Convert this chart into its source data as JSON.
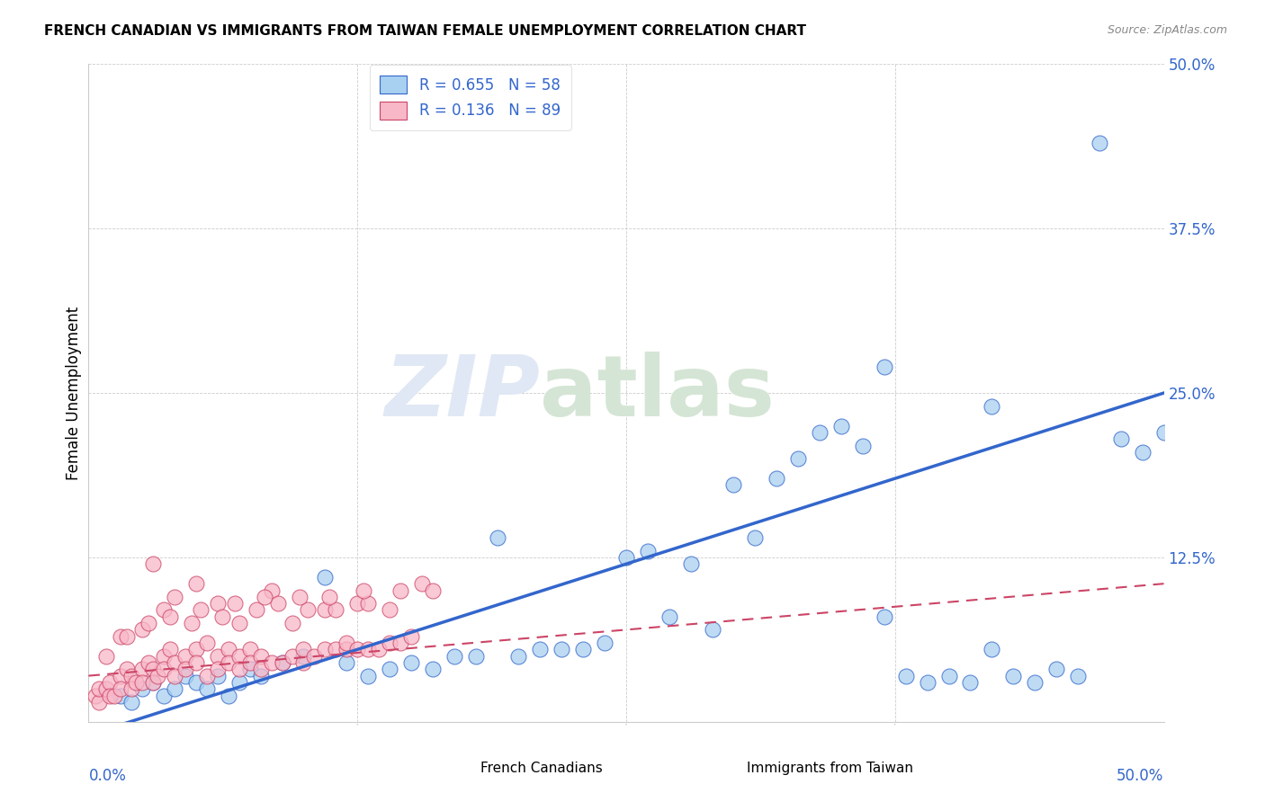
{
  "title": "FRENCH CANADIAN VS IMMIGRANTS FROM TAIWAN FEMALE UNEMPLOYMENT CORRELATION CHART",
  "source": "Source: ZipAtlas.com",
  "ylabel": "Female Unemployment",
  "xlim": [
    0.0,
    50.0
  ],
  "ylim": [
    0.0,
    50.0
  ],
  "legend_r1": "R = 0.655",
  "legend_n1": "N = 58",
  "legend_r2": "R = 0.136",
  "legend_n2": "N = 89",
  "color_blue": "#A8D0F0",
  "color_pink": "#F8B8C8",
  "line_blue": "#3366CC",
  "line_pink": "#CC4466",
  "text_color": "#3366CC",
  "watermark_zip": "ZIP",
  "watermark_atlas": "atlas",
  "blue_line_x0": 0.0,
  "blue_line_y0": -1.0,
  "blue_line_x1": 50.0,
  "blue_line_y1": 25.0,
  "pink_line_x0": 0.0,
  "pink_line_y0": 3.5,
  "pink_line_x1": 50.0,
  "pink_line_y1": 10.5,
  "blue_scatter_x": [
    1.5,
    2.0,
    2.5,
    3.0,
    3.5,
    4.0,
    4.5,
    5.0,
    5.5,
    6.0,
    6.5,
    7.0,
    7.5,
    8.0,
    9.0,
    10.0,
    11.0,
    12.0,
    13.0,
    14.0,
    15.0,
    16.0,
    17.0,
    18.0,
    19.0,
    20.0,
    21.0,
    22.0,
    23.0,
    24.0,
    25.0,
    26.0,
    27.0,
    28.0,
    29.0,
    30.0,
    31.0,
    32.0,
    33.0,
    34.0,
    35.0,
    36.0,
    37.0,
    38.0,
    39.0,
    40.0,
    41.0,
    42.0,
    43.0,
    44.0,
    45.0,
    46.0,
    47.0,
    48.0,
    49.0,
    50.0,
    37.0,
    42.0
  ],
  "blue_scatter_y": [
    2.0,
    1.5,
    2.5,
    3.0,
    2.0,
    2.5,
    3.5,
    3.0,
    2.5,
    3.5,
    2.0,
    3.0,
    4.0,
    3.5,
    4.5,
    5.0,
    11.0,
    4.5,
    3.5,
    4.0,
    4.5,
    4.0,
    5.0,
    5.0,
    14.0,
    5.0,
    5.5,
    5.5,
    5.5,
    6.0,
    12.5,
    13.0,
    8.0,
    12.0,
    7.0,
    18.0,
    14.0,
    18.5,
    20.0,
    22.0,
    22.5,
    21.0,
    8.0,
    3.5,
    3.0,
    3.5,
    3.0,
    5.5,
    3.5,
    3.0,
    4.0,
    3.5,
    44.0,
    21.5,
    20.5,
    22.0,
    27.0,
    24.0
  ],
  "pink_scatter_x": [
    0.3,
    0.5,
    0.5,
    0.8,
    1.0,
    1.0,
    1.2,
    1.5,
    1.5,
    1.8,
    2.0,
    2.0,
    2.2,
    2.5,
    2.5,
    2.8,
    3.0,
    3.0,
    3.2,
    3.5,
    3.5,
    3.8,
    4.0,
    4.0,
    4.5,
    4.5,
    5.0,
    5.0,
    5.5,
    5.5,
    6.0,
    6.0,
    6.5,
    6.5,
    7.0,
    7.0,
    7.5,
    7.5,
    8.0,
    8.0,
    8.5,
    9.0,
    9.5,
    10.0,
    10.0,
    10.5,
    11.0,
    11.5,
    12.0,
    12.0,
    12.5,
    13.0,
    13.5,
    14.0,
    14.5,
    15.0,
    3.0,
    4.0,
    5.0,
    6.0,
    7.0,
    8.5,
    9.5,
    11.0,
    12.5,
    14.0,
    1.5,
    2.5,
    3.5,
    4.8,
    6.2,
    7.8,
    8.8,
    10.2,
    11.5,
    13.0,
    0.8,
    1.8,
    2.8,
    3.8,
    5.2,
    6.8,
    8.2,
    9.8,
    11.2,
    12.8,
    14.5,
    15.5,
    16.0
  ],
  "pink_scatter_y": [
    2.0,
    1.5,
    2.5,
    2.5,
    3.0,
    2.0,
    2.0,
    3.5,
    2.5,
    4.0,
    3.5,
    2.5,
    3.0,
    4.0,
    3.0,
    4.5,
    4.0,
    3.0,
    3.5,
    5.0,
    4.0,
    5.5,
    4.5,
    3.5,
    5.0,
    4.0,
    5.5,
    4.5,
    3.5,
    6.0,
    5.0,
    4.0,
    5.5,
    4.5,
    5.0,
    4.0,
    5.5,
    4.5,
    5.0,
    4.0,
    4.5,
    4.5,
    5.0,
    4.5,
    5.5,
    5.0,
    5.5,
    5.5,
    5.5,
    6.0,
    5.5,
    5.5,
    5.5,
    6.0,
    6.0,
    6.5,
    12.0,
    9.5,
    10.5,
    9.0,
    7.5,
    10.0,
    7.5,
    8.5,
    9.0,
    8.5,
    6.5,
    7.0,
    8.5,
    7.5,
    8.0,
    8.5,
    9.0,
    8.5,
    8.5,
    9.0,
    5.0,
    6.5,
    7.5,
    8.0,
    8.5,
    9.0,
    9.5,
    9.5,
    9.5,
    10.0,
    10.0,
    10.5,
    10.0
  ]
}
